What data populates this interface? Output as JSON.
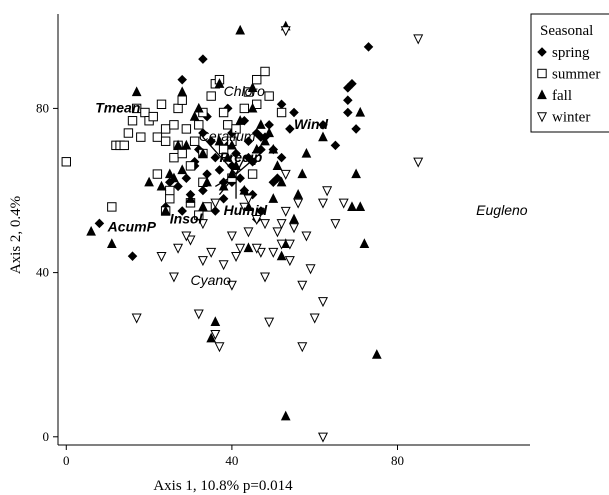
{
  "chart_data": {
    "type": "scatter",
    "title": "",
    "xlabel": "Axis 1, 10.8% p=0.014",
    "ylabel": "Axis 2, 0.4%",
    "xlim": [
      -2,
      112
    ],
    "ylim": [
      -2,
      103
    ],
    "xticks": [
      0,
      40,
      80
    ],
    "yticks": [
      0,
      40,
      80
    ],
    "grid": false,
    "legend": {
      "title": "Seasonal",
      "placement": "top-right",
      "entries": [
        {
          "label": "spring",
          "marker": "diamond-filled"
        },
        {
          "label": "summer",
          "marker": "square-open"
        },
        {
          "label": "fall",
          "marker": "triangle-filled"
        },
        {
          "label": "winter",
          "marker": "triangle-down-open"
        }
      ]
    },
    "centroid": [
      41,
      64
    ],
    "vectors": [
      {
        "label": "Tmean",
        "to": [
          33,
          73
        ],
        "bold": true
      },
      {
        "label": "Wind",
        "to": [
          48,
          70
        ],
        "bold": true
      },
      {
        "label": "Precip",
        "to": [
          43,
          68
        ],
        "bold": true
      },
      {
        "label": "Humid",
        "to": [
          41,
          58
        ],
        "bold": true
      },
      {
        "label": "Insol",
        "to": [
          37,
          59
        ],
        "bold": true
      },
      {
        "label": "AcumP",
        "to": [
          36,
          61
        ],
        "bold": true
      }
    ],
    "text_labels": [
      {
        "text": "Tmean",
        "x": 7,
        "y": 79,
        "bold": true
      },
      {
        "text": "Wind",
        "x": 55,
        "y": 75,
        "bold": true
      },
      {
        "text": "Chloro",
        "x": 38,
        "y": 83,
        "bold": false
      },
      {
        "text": "Ceratium",
        "x": 32,
        "y": 72,
        "bold": false
      },
      {
        "text": "Precip",
        "x": 37,
        "y": 67,
        "bold": true
      },
      {
        "text": "Humid",
        "x": 38,
        "y": 54,
        "bold": true
      },
      {
        "text": "Insol",
        "x": 25,
        "y": 52,
        "bold": true
      },
      {
        "text": "AcumP",
        "x": 10,
        "y": 50,
        "bold": true
      },
      {
        "text": "Cyano",
        "x": 30,
        "y": 37,
        "bold": false
      },
      {
        "text": "Eugleno",
        "x": 99,
        "y": 54,
        "bold": false
      }
    ],
    "series": [
      {
        "name": "spring",
        "marker": "diamond-filled",
        "points": [
          [
            8,
            52
          ],
          [
            16,
            44
          ],
          [
            24,
            56
          ],
          [
            27,
            61
          ],
          [
            28,
            55
          ],
          [
            30,
            59
          ],
          [
            29,
            63
          ],
          [
            31,
            66
          ],
          [
            32,
            70
          ],
          [
            33,
            74
          ],
          [
            34,
            78
          ],
          [
            35,
            72
          ],
          [
            36,
            68
          ],
          [
            34,
            64
          ],
          [
            37,
            65
          ],
          [
            38,
            62
          ],
          [
            38,
            58
          ],
          [
            39,
            71
          ],
          [
            40,
            66
          ],
          [
            41,
            69
          ],
          [
            42,
            63
          ],
          [
            43,
            60
          ],
          [
            44,
            72
          ],
          [
            45,
            67
          ],
          [
            46,
            74
          ],
          [
            47,
            70
          ],
          [
            48,
            73
          ],
          [
            49,
            76
          ],
          [
            50,
            70
          ],
          [
            51,
            63
          ],
          [
            52,
            68
          ],
          [
            54,
            75
          ],
          [
            46,
            53
          ],
          [
            47,
            55
          ],
          [
            50,
            62
          ],
          [
            52,
            81
          ],
          [
            55,
            79
          ],
          [
            62,
            76
          ],
          [
            68,
            79
          ],
          [
            68,
            82
          ],
          [
            69,
            86
          ],
          [
            70,
            75
          ],
          [
            68,
            85
          ],
          [
            65,
            71
          ],
          [
            73,
            95
          ],
          [
            33,
            92
          ],
          [
            28,
            87
          ],
          [
            25,
            62
          ],
          [
            36,
            55
          ],
          [
            40,
            62
          ],
          [
            44,
            68
          ],
          [
            47,
            73
          ],
          [
            40,
            74
          ],
          [
            43,
            77
          ],
          [
            45,
            59
          ],
          [
            39,
            80
          ],
          [
            31,
            67
          ],
          [
            33,
            60
          ]
        ]
      },
      {
        "name": "summer",
        "marker": "square-open",
        "points": [
          [
            0,
            67
          ],
          [
            11,
            56
          ],
          [
            12,
            71
          ],
          [
            13,
            71
          ],
          [
            14,
            71
          ],
          [
            15,
            74
          ],
          [
            16,
            77
          ],
          [
            17,
            80
          ],
          [
            18,
            73
          ],
          [
            19,
            79
          ],
          [
            20,
            77
          ],
          [
            21,
            78
          ],
          [
            22,
            73
          ],
          [
            22,
            64
          ],
          [
            23,
            81
          ],
          [
            24,
            72
          ],
          [
            24,
            75
          ],
          [
            24,
            55
          ],
          [
            25,
            58
          ],
          [
            25,
            60
          ],
          [
            26,
            76
          ],
          [
            26,
            68
          ],
          [
            27,
            71
          ],
          [
            27,
            80
          ],
          [
            28,
            82
          ],
          [
            28,
            69
          ],
          [
            29,
            75
          ],
          [
            30,
            66
          ],
          [
            30,
            57
          ],
          [
            31,
            72
          ],
          [
            32,
            76
          ],
          [
            33,
            79
          ],
          [
            33,
            69
          ],
          [
            33,
            62
          ],
          [
            34,
            56
          ],
          [
            35,
            83
          ],
          [
            36,
            86
          ],
          [
            37,
            87
          ],
          [
            38,
            79
          ],
          [
            38,
            70
          ],
          [
            39,
            76
          ],
          [
            40,
            72
          ],
          [
            40,
            63
          ],
          [
            41,
            75
          ],
          [
            43,
            80
          ],
          [
            44,
            84
          ],
          [
            46,
            87
          ],
          [
            46,
            81
          ],
          [
            48,
            89
          ],
          [
            49,
            83
          ],
          [
            52,
            79
          ],
          [
            45,
            64
          ],
          [
            32,
            54
          ]
        ]
      },
      {
        "name": "fall",
        "marker": "triangle-filled",
        "points": [
          [
            6,
            50
          ],
          [
            11,
            47
          ],
          [
            17,
            84
          ],
          [
            20,
            62
          ],
          [
            23,
            61
          ],
          [
            24,
            55
          ],
          [
            25,
            64
          ],
          [
            26,
            63
          ],
          [
            27,
            71
          ],
          [
            28,
            65
          ],
          [
            29,
            71
          ],
          [
            30,
            58
          ],
          [
            31,
            78
          ],
          [
            32,
            80
          ],
          [
            33,
            69
          ],
          [
            34,
            62
          ],
          [
            35,
            24
          ],
          [
            36,
            28
          ],
          [
            37,
            72
          ],
          [
            38,
            61
          ],
          [
            39,
            68
          ],
          [
            40,
            64
          ],
          [
            40,
            71
          ],
          [
            41,
            66
          ],
          [
            42,
            77
          ],
          [
            42,
            99
          ],
          [
            43,
            60
          ],
          [
            44,
            56
          ],
          [
            44,
            46
          ],
          [
            45,
            80
          ],
          [
            46,
            70
          ],
          [
            47,
            76
          ],
          [
            48,
            72
          ],
          [
            49,
            74
          ],
          [
            50,
            70
          ],
          [
            51,
            66
          ],
          [
            52,
            62
          ],
          [
            52,
            44
          ],
          [
            53,
            47
          ],
          [
            53,
            5
          ],
          [
            53,
            100
          ],
          [
            55,
            53
          ],
          [
            56,
            59
          ],
          [
            57,
            64
          ],
          [
            58,
            69
          ],
          [
            62,
            73
          ],
          [
            69,
            56
          ],
          [
            70,
            64
          ],
          [
            71,
            56
          ],
          [
            71,
            79
          ],
          [
            72,
            47
          ],
          [
            75,
            20
          ],
          [
            28,
            84
          ],
          [
            33,
            56
          ],
          [
            37,
            86
          ],
          [
            45,
            85
          ],
          [
            50,
            58
          ]
        ]
      },
      {
        "name": "winter",
        "marker": "triangle-down-open",
        "points": [
          [
            17,
            29
          ],
          [
            23,
            44
          ],
          [
            26,
            39
          ],
          [
            27,
            46
          ],
          [
            30,
            48
          ],
          [
            32,
            30
          ],
          [
            33,
            43
          ],
          [
            35,
            45
          ],
          [
            36,
            25
          ],
          [
            37,
            22
          ],
          [
            38,
            42
          ],
          [
            40,
            49
          ],
          [
            41,
            44
          ],
          [
            42,
            46
          ],
          [
            43,
            56
          ],
          [
            44,
            50
          ],
          [
            46,
            53
          ],
          [
            47,
            45
          ],
          [
            48,
            39
          ],
          [
            49,
            28
          ],
          [
            50,
            45
          ],
          [
            51,
            50
          ],
          [
            52,
            47
          ],
          [
            53,
            55
          ],
          [
            54,
            43
          ],
          [
            55,
            51
          ],
          [
            56,
            57
          ],
          [
            57,
            37
          ],
          [
            58,
            49
          ],
          [
            59,
            41
          ],
          [
            60,
            29
          ],
          [
            62,
            57
          ],
          [
            63,
            60
          ],
          [
            65,
            52
          ],
          [
            67,
            57
          ],
          [
            40,
            37
          ],
          [
            33,
            52
          ],
          [
            36,
            57
          ],
          [
            29,
            49
          ],
          [
            62,
            33
          ],
          [
            54,
            47
          ],
          [
            52,
            52
          ],
          [
            48,
            52
          ],
          [
            44,
            58
          ],
          [
            46,
            46
          ],
          [
            53,
            99
          ],
          [
            85,
            67
          ],
          [
            85,
            97
          ],
          [
            62,
            0
          ],
          [
            57,
            22
          ],
          [
            53,
            64
          ]
        ]
      }
    ]
  }
}
